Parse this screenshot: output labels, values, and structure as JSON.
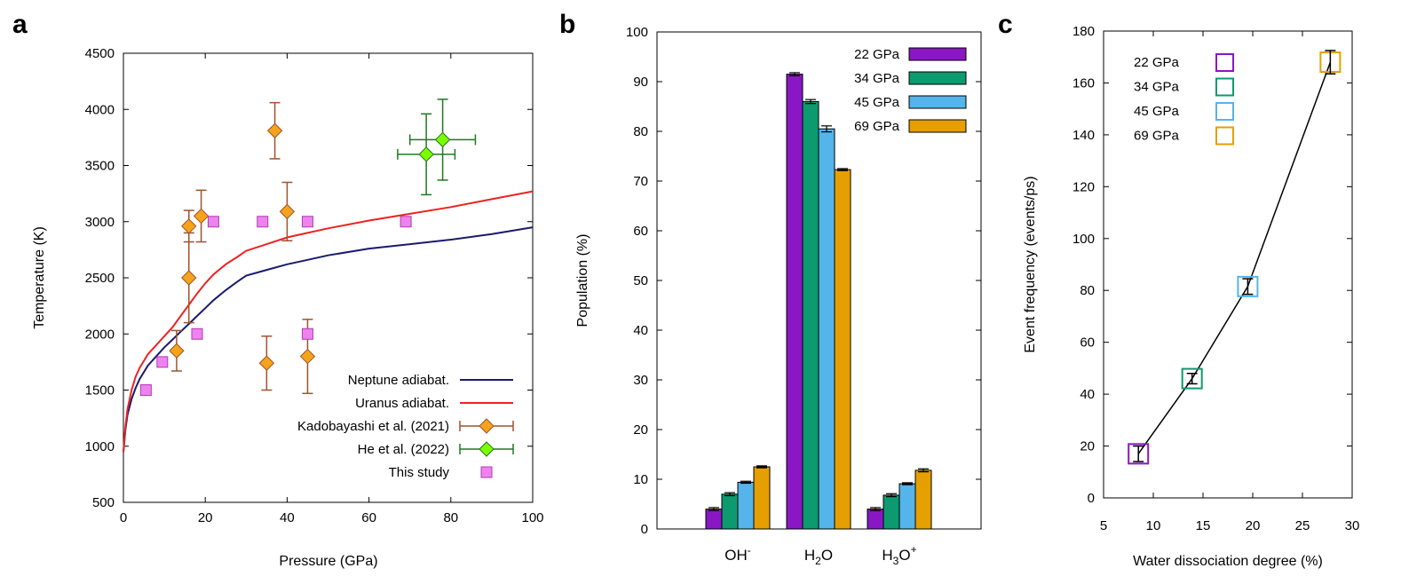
{
  "panels": {
    "a": "a",
    "b": "b",
    "c": "c"
  },
  "colors": {
    "neptune": "#1a1a6e",
    "uranus": "#ee2222",
    "kado": "#f5a31a",
    "kado_err": "#a0522d",
    "he": "#7cfc00",
    "he_err": "#1e7a1e",
    "this": "#ee82ee",
    "this_edge": "#b03cb0",
    "p22": "#8a17c4",
    "p34": "#0d9a6e",
    "p45": "#55b4e9",
    "p69": "#e69f00"
  },
  "chart_data": [
    {
      "id": "a",
      "type": "scatter",
      "xlabel": "Pressure (GPa)",
      "ylabel": "Temperature (K)",
      "xlim": [
        0,
        100
      ],
      "ylim": [
        500,
        4500
      ],
      "xticks": [
        0,
        20,
        40,
        60,
        80,
        100
      ],
      "yticks": [
        500,
        1000,
        1500,
        2000,
        2500,
        3000,
        3500,
        4000,
        4500
      ],
      "legend_position": "bottom-right",
      "series": [
        {
          "name": "Neptune adiabat.",
          "kind": "line",
          "color_key": "neptune",
          "x": [
            0,
            0.5,
            1,
            2,
            3,
            4,
            6,
            8,
            10,
            12,
            14,
            16,
            18,
            20,
            22,
            25,
            28,
            30,
            35,
            40,
            45,
            50,
            60,
            70,
            80,
            90,
            100
          ],
          "y": [
            950,
            1150,
            1280,
            1420,
            1520,
            1600,
            1720,
            1800,
            1880,
            1950,
            2020,
            2090,
            2160,
            2230,
            2300,
            2390,
            2470,
            2520,
            2570,
            2620,
            2660,
            2700,
            2760,
            2800,
            2840,
            2890,
            2950
          ]
        },
        {
          "name": "Uranus adiabat.",
          "kind": "line",
          "color_key": "uranus",
          "x": [
            0,
            0.5,
            1,
            2,
            3,
            4,
            6,
            8,
            10,
            12,
            14,
            16,
            18,
            20,
            22,
            25,
            28,
            30,
            35,
            40,
            45,
            50,
            60,
            70,
            80,
            90,
            100
          ],
          "y": [
            950,
            1180,
            1330,
            1500,
            1620,
            1700,
            1820,
            1900,
            1980,
            2060,
            2160,
            2260,
            2360,
            2450,
            2530,
            2620,
            2690,
            2740,
            2800,
            2860,
            2900,
            2940,
            3010,
            3070,
            3130,
            3200,
            3270
          ]
        },
        {
          "name": "Kadobayashi et al. (2021)",
          "kind": "diamond",
          "color_key": "kado",
          "err_key": "kado_err",
          "points": [
            {
              "x": 13,
              "y": 1850,
              "yerr": 180
            },
            {
              "x": 16,
              "y": 2500,
              "yerr": 400
            },
            {
              "x": 16,
              "y": 2960,
              "yerr": 140
            },
            {
              "x": 19,
              "y": 3050,
              "yerr": 230
            },
            {
              "x": 35,
              "y": 1740,
              "yerr": 240
            },
            {
              "x": 37,
              "y": 3810,
              "yerr": 250
            },
            {
              "x": 40,
              "y": 3090,
              "yerr": 260
            },
            {
              "x": 45,
              "y": 1800,
              "yerr": 330
            }
          ]
        },
        {
          "name": "He et al. (2022)",
          "kind": "diamond",
          "color_key": "he",
          "err_key": "he_err",
          "points": [
            {
              "x": 74,
              "y": 3600,
              "xerr": 7,
              "yerr": 360
            },
            {
              "x": 78,
              "y": 3730,
              "xerr": 8,
              "yerr": 360
            }
          ]
        },
        {
          "name": "This study",
          "kind": "square",
          "color_key": "this",
          "x": [
            5.5,
            9.5,
            18,
            22,
            34,
            45,
            45,
            69
          ],
          "y": [
            1500,
            1750,
            2000,
            3000,
            3000,
            3000,
            2000,
            3000
          ]
        }
      ]
    },
    {
      "id": "b",
      "type": "bar",
      "ylabel": "Population (%)",
      "ylim": [
        0,
        100
      ],
      "yticks": [
        0,
        10,
        20,
        30,
        40,
        50,
        60,
        70,
        80,
        90,
        100
      ],
      "categories": [
        "OH",
        "H2O",
        "H3O"
      ],
      "legend_position": "top-right",
      "series": [
        {
          "name": "22 GPa",
          "color_key": "p22",
          "values": [
            4.0,
            91.5,
            4.0
          ],
          "err": [
            0.3,
            0.3,
            0.3
          ]
        },
        {
          "name": "34 GPa",
          "color_key": "p34",
          "values": [
            7.0,
            86.0,
            6.8
          ],
          "err": [
            0.3,
            0.4,
            0.3
          ]
        },
        {
          "name": "45 GPa",
          "color_key": "p45",
          "values": [
            9.4,
            80.5,
            9.1
          ],
          "err": [
            0.2,
            0.6,
            0.2
          ]
        },
        {
          "name": "69 GPa",
          "color_key": "p69",
          "values": [
            12.5,
            72.3,
            11.8
          ],
          "err": [
            0.2,
            0.2,
            0.3
          ]
        }
      ]
    },
    {
      "id": "c",
      "type": "line",
      "xlabel": "Water dissociation degree (%)",
      "ylabel": "Event frequency (events/ps)",
      "xlim": [
        5,
        30
      ],
      "ylim": [
        0,
        180
      ],
      "xticks": [
        5,
        10,
        15,
        20,
        25,
        30
      ],
      "yticks": [
        0,
        20,
        40,
        60,
        80,
        100,
        120,
        140,
        160,
        180
      ],
      "legend_position": "top-left",
      "series": [
        {
          "name": "22 GPa",
          "color_key": "p22",
          "x": 8.5,
          "y": 17,
          "yerr": 3
        },
        {
          "name": "34 GPa",
          "color_key": "p34",
          "x": 13.9,
          "y": 46,
          "yerr": 2
        },
        {
          "name": "45 GPa",
          "color_key": "p45",
          "x": 19.5,
          "y": 81.5,
          "yerr": 3
        },
        {
          "name": "69 GPa",
          "color_key": "p69",
          "x": 27.8,
          "y": 168,
          "yerr": 4.5
        }
      ],
      "fit_line": {
        "x": [
          8.5,
          13.9,
          19.5,
          27.8
        ],
        "y": [
          17,
          46,
          81.5,
          168
        ]
      }
    }
  ]
}
